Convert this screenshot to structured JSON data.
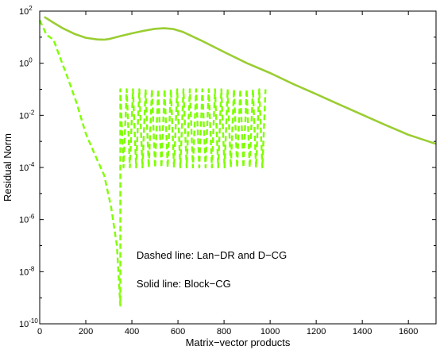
{
  "chart_data": {
    "type": "line",
    "title": "",
    "xlabel": "Matrix−vector products",
    "ylabel": "Residual Norm",
    "xlim": [
      0,
      1720
    ],
    "ylim_log10": [
      -10,
      2
    ],
    "y_scale": "log",
    "grid": false,
    "legend": "none",
    "x_ticks": [
      {
        "value": 0,
        "label": "0"
      },
      {
        "value": 200,
        "label": "200"
      },
      {
        "value": 400,
        "label": "400"
      },
      {
        "value": 600,
        "label": "600"
      },
      {
        "value": 800,
        "label": "800"
      },
      {
        "value": 1000,
        "label": "1000"
      },
      {
        "value": 1200,
        "label": "1200"
      },
      {
        "value": 1400,
        "label": "1400"
      },
      {
        "value": 1600,
        "label": "1600"
      }
    ],
    "y_ticks": [
      {
        "exp": 2,
        "base": "10",
        "sup": "2"
      },
      {
        "exp": 0,
        "base": "10",
        "sup": "0"
      },
      {
        "exp": -2,
        "base": "10",
        "sup": "-2"
      },
      {
        "exp": -4,
        "base": "10",
        "sup": "-4"
      },
      {
        "exp": -6,
        "base": "10",
        "sup": "-6"
      },
      {
        "exp": -8,
        "base": "10",
        "sup": "-8"
      },
      {
        "exp": -10,
        "base": "10",
        "sup": "-10"
      }
    ],
    "annotations": [
      {
        "text": "Dashed line: Lan−DR and D−CG",
        "x": 420,
        "exp": -7.5
      },
      {
        "text": "Solid line: Block−CG",
        "x": 420,
        "exp": -8.6
      }
    ],
    "series": [
      {
        "style": "solid",
        "color": "#9acd32",
        "x": [
          20,
          60,
          100,
          150,
          200,
          250,
          280,
          300,
          350,
          400,
          450,
          500,
          540,
          580,
          620,
          700,
          800,
          900,
          1000,
          1100,
          1200,
          1300,
          1400,
          1500,
          1600,
          1720
        ],
        "y": [
          60,
          36,
          22,
          13.5,
          9.5,
          8.2,
          8.0,
          8.5,
          11,
          14,
          17.5,
          21,
          22,
          20.5,
          16,
          7.5,
          2.7,
          1.0,
          0.42,
          0.16,
          0.065,
          0.026,
          0.0105,
          0.0043,
          0.0018,
          0.0008
        ]
      },
      {
        "style": "dashed",
        "color": "#7fff00",
        "envelope": [
          {
            "x": 0,
            "y": 45
          },
          {
            "x": 30,
            "y": 12
          },
          {
            "x": 60,
            "y": 8
          },
          {
            "x": 90,
            "y": 1.5
          },
          {
            "x": 120,
            "y": 0.3
          },
          {
            "x": 160,
            "y": 0.03
          },
          {
            "x": 200,
            "y": 0.002
          },
          {
            "x": 240,
            "y": 0.0003
          },
          {
            "x": 280,
            "y": 5e-05
          },
          {
            "x": 310,
            "y": 3e-06
          },
          {
            "x": 335,
            "y": 1e-07
          },
          {
            "x": 350,
            "y": 5e-10
          }
        ],
        "oscillation": {
          "x_start": 350,
          "x_end": 980,
          "peaks": 23,
          "y_high": 0.1,
          "y_low": 0.0001
        }
      }
    ]
  }
}
